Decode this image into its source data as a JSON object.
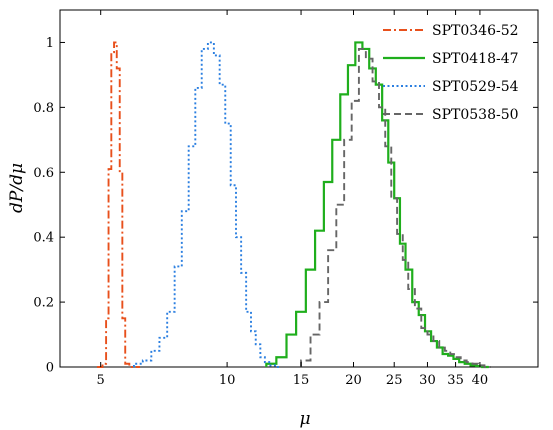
{
  "chart_data": {
    "type": "line",
    "title": "",
    "xlabel": "μ",
    "ylabel": "dP/dμ",
    "x_scale": "log",
    "xlim": [
      4,
      55
    ],
    "ylim": [
      0,
      1.1
    ],
    "grid": false,
    "legend_position": "top-right",
    "x_ticks": [
      5,
      10,
      15,
      20,
      25,
      30,
      35,
      40
    ],
    "x_tick_labels": [
      "5",
      "10",
      "15",
      "20",
      "25",
      "30",
      "35",
      "40"
    ],
    "y_ticks": [
      0,
      0.2,
      0.4,
      0.6,
      0.8,
      1
    ],
    "y_tick_labels": [
      "0",
      "0.2",
      "0.4",
      "0.6",
      "0.8",
      "1"
    ],
    "series": [
      {
        "name": "SPT0346-52",
        "color": "#e8501c",
        "dash": "dashdot",
        "bin_edges": [
          4.9,
          5.05,
          5.15,
          5.22,
          5.3,
          5.38,
          5.46,
          5.55,
          5.63,
          5.72,
          5.85,
          6.0,
          6.2
        ],
        "values": [
          0,
          0.01,
          0.15,
          0.61,
          0.97,
          1.0,
          0.92,
          0.6,
          0.15,
          0.01,
          0,
          0
        ]
      },
      {
        "name": "SPT0418-47",
        "color": "#1fae1c",
        "dash": "solid",
        "bin_edges": [
          12.4,
          13.1,
          13.85,
          14.6,
          15.4,
          16.2,
          17.0,
          17.8,
          18.6,
          19.4,
          20.2,
          21.0,
          21.8,
          22.6,
          23.4,
          24.2,
          25.0,
          25.8,
          26.6,
          27.6,
          28.6,
          29.6,
          30.6,
          31.6,
          32.6,
          33.6,
          34.6,
          35.7,
          36.8,
          38.0,
          39.2,
          40.5,
          42.0
        ],
        "values": [
          0.01,
          0.03,
          0.1,
          0.17,
          0.3,
          0.42,
          0.57,
          0.7,
          0.84,
          0.93,
          1.0,
          0.98,
          0.92,
          0.87,
          0.76,
          0.63,
          0.52,
          0.38,
          0.3,
          0.2,
          0.16,
          0.11,
          0.08,
          0.06,
          0.04,
          0.035,
          0.025,
          0.015,
          0.01,
          0.005,
          0.003,
          0
        ]
      },
      {
        "name": "SPT0529-54",
        "color": "#2b7fe0",
        "dash": "dotted",
        "bin_edges": [
          6.0,
          6.3,
          6.6,
          6.9,
          7.2,
          7.5,
          7.8,
          8.1,
          8.4,
          8.7,
          9.0,
          9.3,
          9.6,
          9.9,
          10.2,
          10.5,
          10.8,
          11.1,
          11.4,
          11.7,
          12.0,
          12.3,
          12.6,
          13.0,
          13.4
        ],
        "values": [
          0.01,
          0.02,
          0.05,
          0.09,
          0.17,
          0.31,
          0.48,
          0.68,
          0.86,
          0.98,
          1.0,
          0.96,
          0.87,
          0.75,
          0.56,
          0.4,
          0.29,
          0.17,
          0.11,
          0.07,
          0.03,
          0.015,
          0.005,
          0
        ]
      },
      {
        "name": "SPT0538-50",
        "color": "#666666",
        "dash": "dashed",
        "bin_edges": [
          15.0,
          15.8,
          16.6,
          17.4,
          18.2,
          19.0,
          19.8,
          20.6,
          21.4,
          22.2,
          23.0,
          23.8,
          24.6,
          25.4,
          26.2,
          27.0,
          28.0,
          29.0,
          30.0,
          31.0,
          32.0,
          33.0,
          34.0,
          35.0,
          36.0,
          37.2,
          38.4,
          39.6,
          41.0,
          42.5
        ],
        "values": [
          0.02,
          0.1,
          0.2,
          0.36,
          0.5,
          0.7,
          0.82,
          0.98,
          0.95,
          0.88,
          0.8,
          0.68,
          0.52,
          0.41,
          0.33,
          0.24,
          0.18,
          0.12,
          0.1,
          0.08,
          0.06,
          0.05,
          0.04,
          0.03,
          0.02,
          0.015,
          0.01,
          0.005,
          0
        ]
      }
    ]
  }
}
